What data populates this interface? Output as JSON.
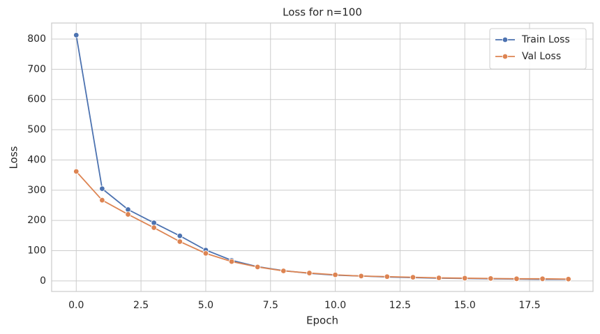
{
  "chart_data": {
    "type": "line",
    "title": "Loss for n=100",
    "x_label": "Epoch",
    "y_label": "Loss",
    "x": [
      0,
      1,
      2,
      3,
      4,
      5,
      6,
      7,
      8,
      9,
      10,
      11,
      12,
      13,
      14,
      15,
      16,
      17,
      18,
      19
    ],
    "series": [
      {
        "name": "Train Loss",
        "color": "#4c72b0",
        "values": [
          813,
          305,
          236,
          192,
          149,
          102,
          68,
          47,
          34,
          25,
          19,
          16,
          13,
          11,
          9,
          8,
          7,
          6,
          5,
          5
        ]
      },
      {
        "name": "Val Loss",
        "color": "#dd8452",
        "values": [
          362,
          267,
          220,
          176,
          130,
          91,
          64,
          46,
          33,
          26,
          20,
          16,
          14,
          12,
          10,
          9,
          8,
          7,
          7,
          6
        ]
      }
    ],
    "xlim": [
      -0.95,
      19.95
    ],
    "xticks": [
      {
        "value": 0,
        "label": "0.0"
      },
      {
        "value": 2.5,
        "label": "2.5"
      },
      {
        "value": 5,
        "label": "5.0"
      },
      {
        "value": 7.5,
        "label": "7.5"
      },
      {
        "value": 10,
        "label": "10.0"
      },
      {
        "value": 12.5,
        "label": "12.5"
      },
      {
        "value": 15,
        "label": "15.0"
      },
      {
        "value": 17.5,
        "label": "17.5"
      }
    ],
    "ylim": [
      -35,
      853
    ],
    "yticks": [
      0,
      100,
      200,
      300,
      400,
      500,
      600,
      700,
      800
    ],
    "grid": true,
    "legend": "upper right"
  }
}
